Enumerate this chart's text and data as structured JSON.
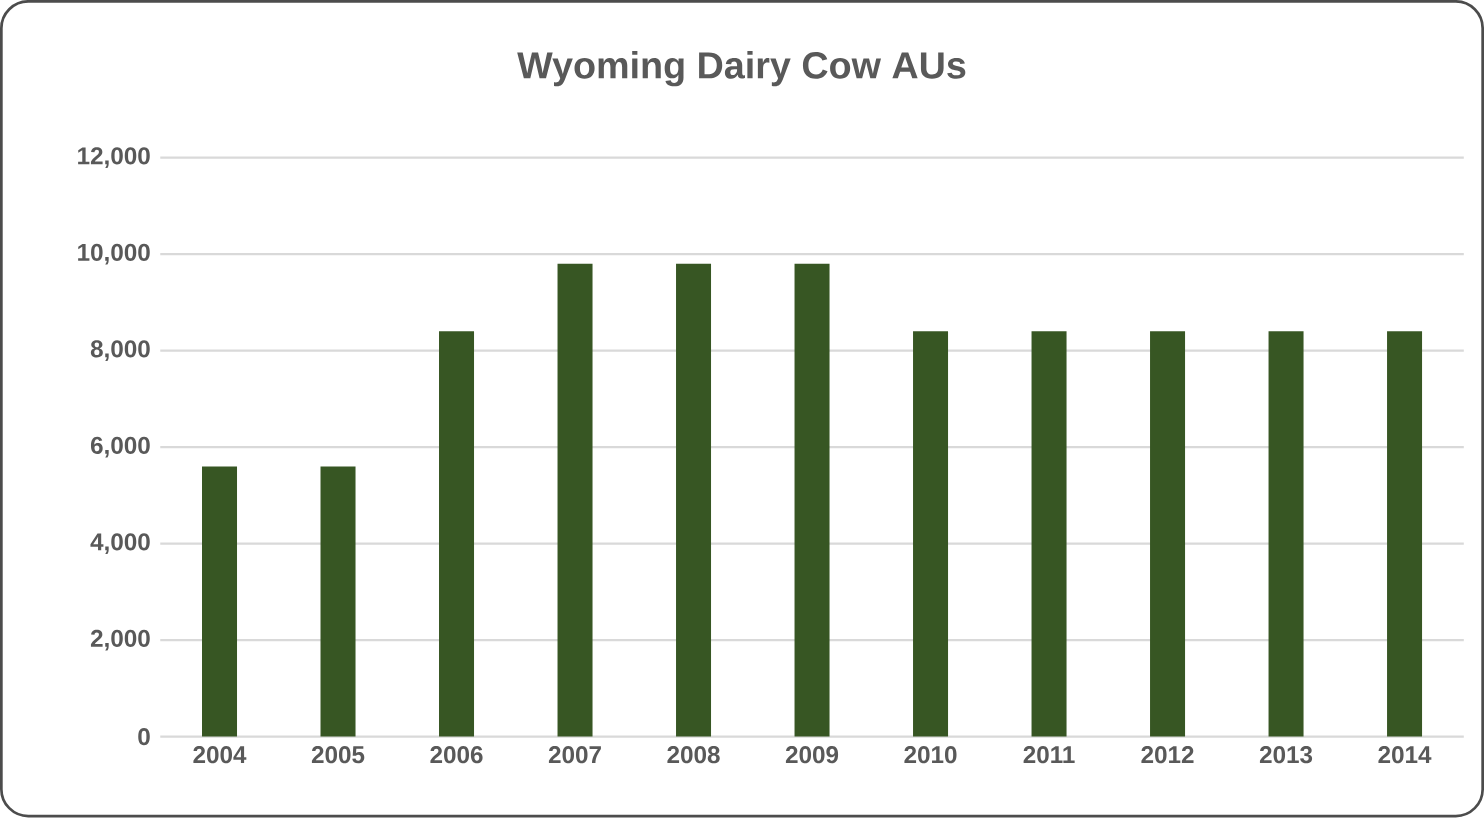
{
  "chart_data": {
    "type": "bar",
    "title": "Wyoming Dairy Cow AUs",
    "categories": [
      "2004",
      "2005",
      "2006",
      "2007",
      "2008",
      "2009",
      "2010",
      "2011",
      "2012",
      "2013",
      "2014"
    ],
    "values": [
      5600,
      5600,
      8400,
      9800,
      9800,
      9800,
      8400,
      8400,
      8400,
      8400,
      8400
    ],
    "color": "#375623",
    "ylim": [
      0,
      12000
    ],
    "yticks": [
      {
        "value": 0,
        "label": "0"
      },
      {
        "value": 2000,
        "label": "2,000"
      },
      {
        "value": 4000,
        "label": "4,000"
      },
      {
        "value": 6000,
        "label": "6,000"
      },
      {
        "value": 8000,
        "label": "8,000"
      },
      {
        "value": 10000,
        "label": "10,000"
      },
      {
        "value": 12000,
        "label": "12,000"
      }
    ],
    "grid": "y"
  }
}
